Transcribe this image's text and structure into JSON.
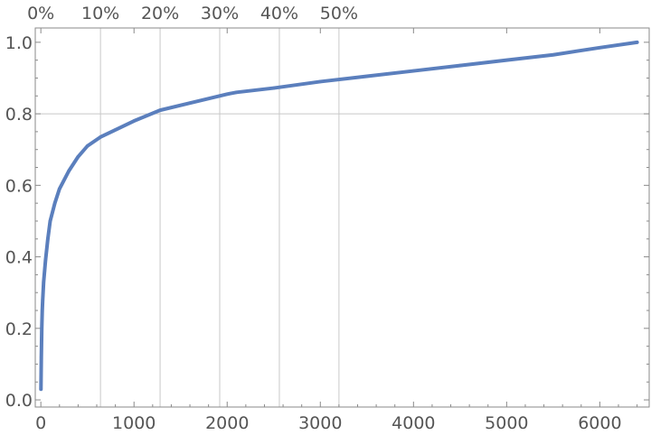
{
  "chart_data": {
    "type": "scatter",
    "title": "",
    "xlabel": "",
    "ylabel": "",
    "xlim": [
      -60,
      6530
    ],
    "ylim": [
      -0.02,
      1.04
    ],
    "grid": true,
    "x_ticks": [
      0,
      1000,
      2000,
      3000,
      4000,
      5000,
      6000
    ],
    "x_tick_labels": [
      "0",
      "1000",
      "2000",
      "3000",
      "4000",
      "5000",
      "6000"
    ],
    "y_ticks": [
      0.0,
      0.2,
      0.4,
      0.6,
      0.8,
      1.0
    ],
    "y_tick_labels": [
      "0.0",
      "0.2",
      "0.4",
      "0.6",
      "0.8",
      "1.0"
    ],
    "top_axis_ticks": [
      0,
      640,
      1280,
      1920,
      2560,
      3200
    ],
    "top_axis_tick_labels": [
      "0%",
      "10%",
      "20%",
      "30%",
      "40%",
      "50%"
    ],
    "vertical_gridlines_x": [
      640,
      1280,
      1920,
      2560,
      3200
    ],
    "horizontal_gridlines_y": [
      0.8
    ],
    "series_color": "#5b7fbd",
    "series": [
      {
        "name": "",
        "points": [
          [
            1,
            0.03
          ],
          [
            5,
            0.12
          ],
          [
            10,
            0.2
          ],
          [
            15,
            0.25
          ],
          [
            20,
            0.28
          ],
          [
            30,
            0.33
          ],
          [
            40,
            0.36
          ],
          [
            50,
            0.39
          ],
          [
            75,
            0.45
          ],
          [
            100,
            0.5
          ],
          [
            150,
            0.55
          ],
          [
            200,
            0.59
          ],
          [
            300,
            0.64
          ],
          [
            400,
            0.68
          ],
          [
            500,
            0.71
          ],
          [
            640,
            0.735
          ],
          [
            800,
            0.755
          ],
          [
            1000,
            0.78
          ],
          [
            1280,
            0.81
          ],
          [
            1600,
            0.83
          ],
          [
            2000,
            0.855
          ],
          [
            2100,
            0.86
          ],
          [
            2500,
            0.872
          ],
          [
            3000,
            0.89
          ],
          [
            3500,
            0.905
          ],
          [
            4000,
            0.92
          ],
          [
            4500,
            0.935
          ],
          [
            5000,
            0.95
          ],
          [
            5500,
            0.965
          ],
          [
            6000,
            0.985
          ],
          [
            6400,
            1.0
          ]
        ]
      }
    ]
  }
}
